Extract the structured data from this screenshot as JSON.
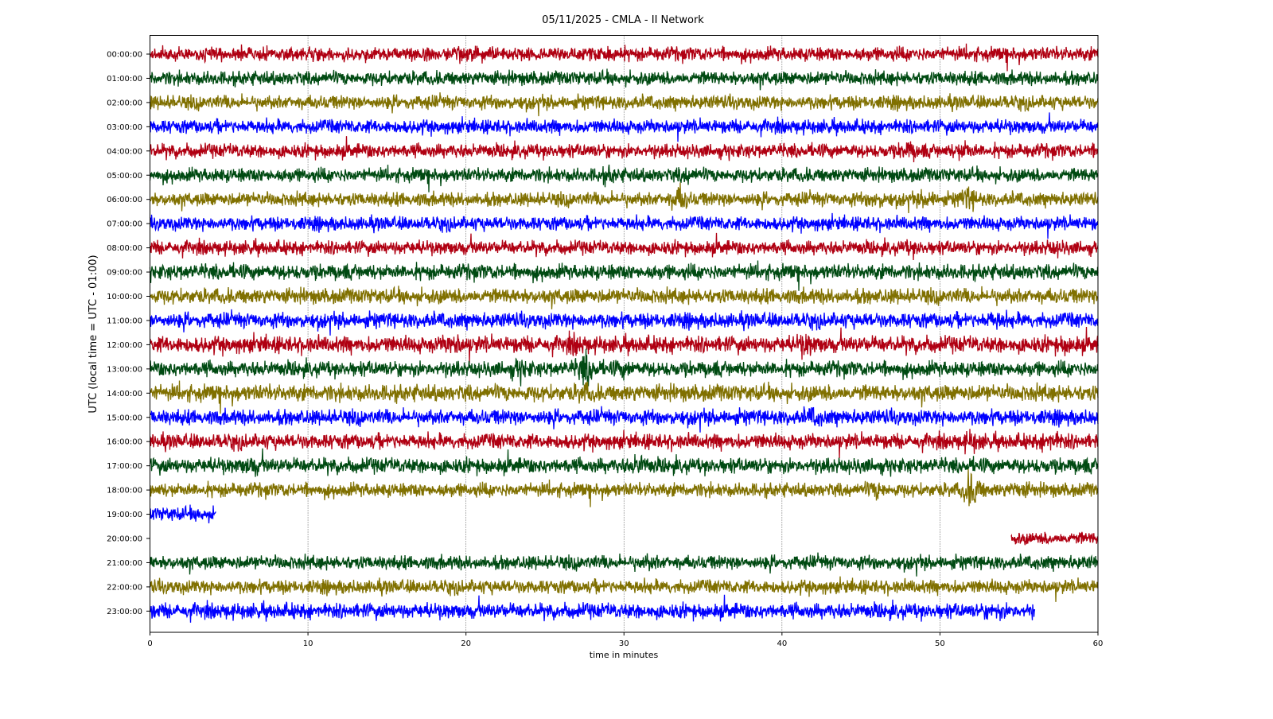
{
  "chart_data": {
    "type": "line",
    "subtype": "helicorder",
    "title": "05/11/2025 - CMLA - II Network",
    "xlabel": "time in minutes",
    "ylabel": "UTC (local time = UTC - 01:00)",
    "xlim": [
      0,
      60
    ],
    "xticks": [
      "0",
      "10",
      "20",
      "30",
      "40",
      "50",
      "60"
    ],
    "grid": "vertical dotted at every 10 minutes",
    "colors": [
      "#b00012",
      "#004a12",
      "#807000",
      "#0000ff"
    ],
    "rows": [
      {
        "label": "00:00:00",
        "start": 0,
        "end": 60,
        "noise": 1.0,
        "events": []
      },
      {
        "label": "01:00:00",
        "start": 0,
        "end": 60,
        "noise": 1.0,
        "events": []
      },
      {
        "label": "02:00:00",
        "start": 0,
        "end": 60,
        "noise": 1.0,
        "events": []
      },
      {
        "label": "03:00:00",
        "start": 0,
        "end": 60,
        "noise": 1.0,
        "events": []
      },
      {
        "label": "04:00:00",
        "start": 0,
        "end": 60,
        "noise": 1.0,
        "events": [
          [
            48,
            1.6
          ],
          [
            51.5,
            1.6
          ]
        ]
      },
      {
        "label": "05:00:00",
        "start": 0,
        "end": 60,
        "noise": 1.0,
        "events": [
          [
            29,
            1.4
          ],
          [
            34,
            1.4
          ]
        ]
      },
      {
        "label": "06:00:00",
        "start": 0,
        "end": 60,
        "noise": 1.0,
        "events": [
          [
            33.5,
            2.2
          ],
          [
            46,
            1.5
          ],
          [
            49.2,
            1.5
          ],
          [
            51.8,
            1.9
          ]
        ]
      },
      {
        "label": "07:00:00",
        "start": 0,
        "end": 60,
        "noise": 1.0,
        "events": []
      },
      {
        "label": "08:00:00",
        "start": 0,
        "end": 60,
        "noise": 1.0,
        "events": [
          [
            48.2,
            1.3
          ],
          [
            57.3,
            1.3
          ]
        ]
      },
      {
        "label": "09:00:00",
        "start": 0,
        "end": 60,
        "noise": 1.1,
        "events": []
      },
      {
        "label": "10:00:00",
        "start": 0,
        "end": 60,
        "noise": 1.1,
        "events": []
      },
      {
        "label": "11:00:00",
        "start": 0,
        "end": 60,
        "noise": 1.1,
        "events": [
          [
            53.5,
            1.4
          ]
        ]
      },
      {
        "label": "12:00:00",
        "start": 0,
        "end": 60,
        "noise": 1.2,
        "events": [
          [
            19.2,
            1.5
          ],
          [
            27,
            1.4
          ],
          [
            41.5,
            1.6
          ],
          [
            58,
            1.3
          ]
        ]
      },
      {
        "label": "13:00:00",
        "start": 0,
        "end": 60,
        "noise": 1.1,
        "events": [
          [
            23.4,
            1.6
          ],
          [
            27.6,
            2.4
          ],
          [
            30,
            1.4
          ]
        ]
      },
      {
        "label": "14:00:00",
        "start": 0,
        "end": 60,
        "noise": 1.2,
        "events": [
          [
            27.5,
            1.4
          ]
        ]
      },
      {
        "label": "15:00:00",
        "start": 0,
        "end": 60,
        "noise": 1.1,
        "events": [
          [
            42,
            1.5
          ]
        ]
      },
      {
        "label": "16:00:00",
        "start": 0,
        "end": 60,
        "noise": 1.1,
        "events": [
          [
            52,
            1.6
          ],
          [
            57,
            1.6
          ]
        ]
      },
      {
        "label": "17:00:00",
        "start": 0,
        "end": 60,
        "noise": 1.1,
        "events": [
          [
            6.5,
            1.5
          ],
          [
            31,
            1.6
          ]
        ]
      },
      {
        "label": "18:00:00",
        "start": 0,
        "end": 60,
        "noise": 1.0,
        "events": [
          [
            46,
            1.6
          ],
          [
            52,
            2.8
          ],
          [
            55,
            1.4
          ]
        ]
      },
      {
        "label": "19:00:00",
        "start": 0,
        "end": 4.2,
        "noise": 1.0,
        "events": []
      },
      {
        "label": "20:00:00",
        "start": 54.5,
        "end": 60,
        "noise": 0.9,
        "events": []
      },
      {
        "label": "21:00:00",
        "start": 0,
        "end": 60,
        "noise": 1.0,
        "events": [
          [
            31.5,
            1.3
          ]
        ]
      },
      {
        "label": "22:00:00",
        "start": 0,
        "end": 60,
        "noise": 1.0,
        "events": []
      },
      {
        "label": "23:00:00",
        "start": 0,
        "end": 56,
        "noise": 1.1,
        "events": [
          [
            53.5,
            1.3
          ]
        ]
      }
    ]
  }
}
